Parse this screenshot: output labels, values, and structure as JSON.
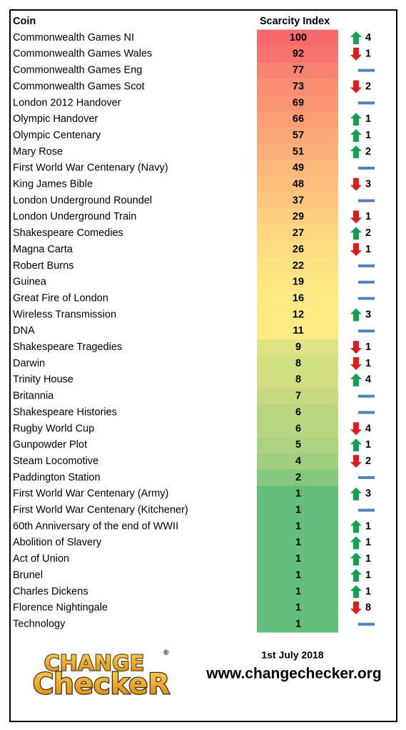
{
  "header": {
    "coin": "Coin",
    "index": "Scarcity Index"
  },
  "table": {
    "rows": [
      {
        "coin": "Commonwealth Games NI",
        "index": 100,
        "trend": "up",
        "change": 4,
        "color": "#f8696b"
      },
      {
        "coin": "Commonwealth Games Wales",
        "index": 92,
        "trend": "down",
        "change": 1,
        "color": "#f8736d"
      },
      {
        "coin": "Commonwealth Games Eng",
        "index": 77,
        "trend": "none",
        "change": null,
        "color": "#f98370"
      },
      {
        "coin": "Commonwealth Games Scot",
        "index": 73,
        "trend": "down",
        "change": 2,
        "color": "#fa8d72"
      },
      {
        "coin": "London 2012 Handover",
        "index": 69,
        "trend": "none",
        "change": null,
        "color": "#fa9573"
      },
      {
        "coin": "Olympic Handover",
        "index": 66,
        "trend": "up",
        "change": 1,
        "color": "#fb9d75"
      },
      {
        "coin": "Olympic Centenary",
        "index": 57,
        "trend": "up",
        "change": 1,
        "color": "#fba777"
      },
      {
        "coin": "Mary Rose",
        "index": 51,
        "trend": "up",
        "change": 2,
        "color": "#fcb079"
      },
      {
        "coin": "First World War Centenary (Navy)",
        "index": 49,
        "trend": "none",
        "change": null,
        "color": "#fcb87a"
      },
      {
        "coin": "King James Bible",
        "index": 48,
        "trend": "down",
        "change": 3,
        "color": "#fdc07c"
      },
      {
        "coin": "London Underground Roundel",
        "index": 37,
        "trend": "none",
        "change": null,
        "color": "#fdc87d"
      },
      {
        "coin": "London Underground Train",
        "index": 29,
        "trend": "down",
        "change": 1,
        "color": "#fdd07f"
      },
      {
        "coin": "Shakespeare Comedies",
        "index": 27,
        "trend": "up",
        "change": 2,
        "color": "#fed780"
      },
      {
        "coin": "Magna Carta",
        "index": 26,
        "trend": "down",
        "change": 1,
        "color": "#fedd81"
      },
      {
        "coin": "Robert Burns",
        "index": 22,
        "trend": "none",
        "change": null,
        "color": "#fee282"
      },
      {
        "coin": "Guinea",
        "index": 19,
        "trend": "none",
        "change": null,
        "color": "#fee683"
      },
      {
        "coin": "Great Fire of London",
        "index": 16,
        "trend": "none",
        "change": null,
        "color": "#ffe984"
      },
      {
        "coin": "Wireless Transmission",
        "index": 12,
        "trend": "up",
        "change": 3,
        "color": "#ffeb84"
      },
      {
        "coin": "DNA",
        "index": 11,
        "trend": "none",
        "change": null,
        "color": "#ffeb84"
      },
      {
        "coin": "Shakespeare Tragedies",
        "index": 9,
        "trend": "down",
        "change": 1,
        "color": "#e0e383"
      },
      {
        "coin": "Darwin",
        "index": 8,
        "trend": "down",
        "change": 1,
        "color": "#d3df82"
      },
      {
        "coin": "Trinity House",
        "index": 8,
        "trend": "up",
        "change": 4,
        "color": "#d3df82"
      },
      {
        "coin": "Britannia",
        "index": 7,
        "trend": "none",
        "change": null,
        "color": "#c6db81"
      },
      {
        "coin": "Shakespeare Histories",
        "index": 6,
        "trend": "none",
        "change": null,
        "color": "#b9d780"
      },
      {
        "coin": "Rugby World Cup",
        "index": 6,
        "trend": "down",
        "change": 4,
        "color": "#b9d780"
      },
      {
        "coin": "Gunpowder Plot",
        "index": 5,
        "trend": "up",
        "change": 1,
        "color": "#acd37f"
      },
      {
        "coin": "Steam Locomotive",
        "index": 4,
        "trend": "down",
        "change": 2,
        "color": "#9fcf7e"
      },
      {
        "coin": "Paddington Station",
        "index": 2,
        "trend": "none",
        "change": null,
        "color": "#85c77c"
      },
      {
        "coin": "First World War Centenary (Army)",
        "index": 1,
        "trend": "up",
        "change": 3,
        "color": "#63be7b"
      },
      {
        "coin": "First World War Centenary (Kitchener)",
        "index": 1,
        "trend": "none",
        "change": null,
        "color": "#63be7b"
      },
      {
        "coin": "60th Anniversary of the end of WWII",
        "index": 1,
        "trend": "up",
        "change": 1,
        "color": "#63be7b"
      },
      {
        "coin": "Abolition of Slavery",
        "index": 1,
        "trend": "up",
        "change": 1,
        "color": "#63be7b"
      },
      {
        "coin": "Act of Union",
        "index": 1,
        "trend": "up",
        "change": 1,
        "color": "#63be7b"
      },
      {
        "coin": "Brunel",
        "index": 1,
        "trend": "up",
        "change": 1,
        "color": "#63be7b"
      },
      {
        "coin": "Charles Dickens",
        "index": 1,
        "trend": "up",
        "change": 1,
        "color": "#63be7b"
      },
      {
        "coin": "Florence Nightingale",
        "index": 1,
        "trend": "down",
        "change": 8,
        "color": "#63be7b"
      },
      {
        "coin": "Technology",
        "index": 1,
        "trend": "none",
        "change": null,
        "color": "#63be7b"
      }
    ]
  },
  "footer": {
    "logo_top": "CHANGE",
    "logo_mark": "®",
    "logo_bottom": "CheckeR",
    "date": "1st July 2018",
    "url": "www.changechecker.org"
  }
}
